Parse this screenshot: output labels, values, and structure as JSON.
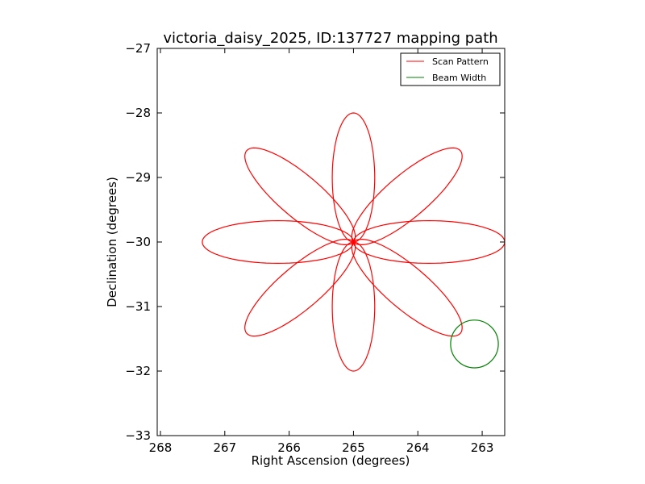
{
  "chart_data": {
    "type": "line",
    "title": "victoria_daisy_2025, ID:137727 mapping path",
    "xlabel": "Right Ascension (degrees)",
    "ylabel": "Declination (degrees)",
    "xlim": [
      268.05,
      262.65
    ],
    "ylim": [
      -33,
      -27
    ],
    "x_ticks": [
      268,
      267,
      266,
      265,
      264,
      263
    ],
    "y_ticks": [
      -27,
      -28,
      -29,
      -30,
      -31,
      -32,
      -33
    ],
    "x_tick_labels": [
      "268",
      "267",
      "266",
      "265",
      "264",
      "263"
    ],
    "y_tick_labels": [
      "−27",
      "−28",
      "−29",
      "−30",
      "−31",
      "−32",
      "−33"
    ],
    "grid": false,
    "legend_position": "top-right",
    "series": [
      {
        "name": "Scan Pattern",
        "color": "#ff0000",
        "pattern": "daisy",
        "center_ra": 265.0,
        "center_dec": -30.0,
        "petal_length_ra": 2.35,
        "petal_length_dec": 2.0,
        "petal_half_width": 0.33,
        "petal_angles_deg": [
          0,
          45,
          90,
          135,
          180,
          225,
          270,
          315
        ]
      },
      {
        "name": "Beam Width",
        "color": "#008000",
        "shape": "circle",
        "center_ra": 263.12,
        "center_dec": -31.58,
        "radius_dec": 0.37
      }
    ]
  }
}
